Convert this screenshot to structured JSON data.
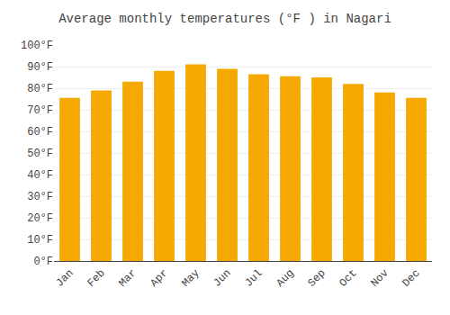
{
  "chart_data": {
    "type": "bar",
    "title": "Average monthly temperatures (°F ) in Nagari",
    "categories": [
      "Jan",
      "Feb",
      "Mar",
      "Apr",
      "May",
      "Jun",
      "Jul",
      "Aug",
      "Sep",
      "Oct",
      "Nov",
      "Dec"
    ],
    "values": [
      75.5,
      79,
      83,
      88,
      91,
      89,
      86.5,
      85.5,
      85,
      82,
      78,
      75.5
    ],
    "color": "#F5A800",
    "ylim": [
      0,
      100
    ],
    "yticks": [
      {
        "value": 0,
        "label": "0°F"
      },
      {
        "value": 10,
        "label": "10°F"
      },
      {
        "value": 20,
        "label": "20°F"
      },
      {
        "value": 30,
        "label": "30°F"
      },
      {
        "value": 40,
        "label": "40°F"
      },
      {
        "value": 50,
        "label": "50°F"
      },
      {
        "value": 60,
        "label": "60°F"
      },
      {
        "value": 70,
        "label": "70°F"
      },
      {
        "value": 80,
        "label": "80°F"
      },
      {
        "value": 90,
        "label": "90°F"
      },
      {
        "value": 100,
        "label": "100°F"
      }
    ],
    "grid": true
  }
}
